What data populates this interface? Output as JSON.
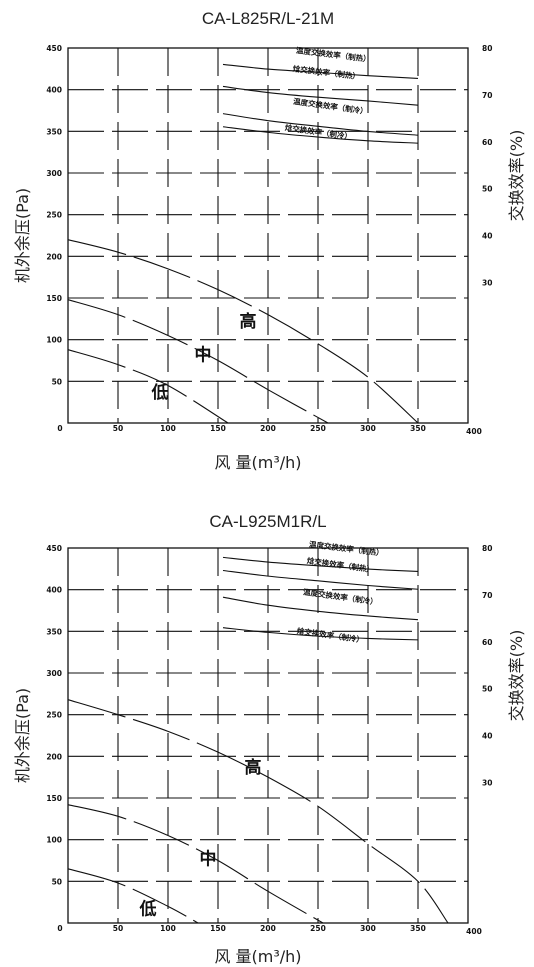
{
  "chart_data": [
    {
      "type": "line",
      "title": "CA-L825R/L-21M",
      "xlabel": "风 量(m³/h)",
      "ylabel": "机外余压(Pa)",
      "y2label": "交换效率(%)",
      "xlim": [
        0,
        400
      ],
      "ylim": [
        0,
        450
      ],
      "y2lim": [
        0,
        80
      ],
      "x_ticks": [
        "0",
        "50",
        "100",
        "150",
        "200",
        "250",
        "300",
        "350",
        "400"
      ],
      "y_ticks": [
        "50",
        "100",
        "150",
        "200",
        "250",
        "300",
        "350",
        "400",
        "450"
      ],
      "y2_ticks": [
        "30",
        "40",
        "50",
        "60",
        "70",
        "80"
      ],
      "grid": true,
      "series": [
        {
          "name": "高",
          "axis": "left",
          "x": [
            0,
            50,
            100,
            150,
            200,
            250,
            300,
            350
          ],
          "y": [
            220,
            205,
            185,
            160,
            130,
            95,
            55,
            0
          ]
        },
        {
          "name": "中",
          "axis": "left",
          "x": [
            0,
            50,
            100,
            150,
            200,
            260
          ],
          "y": [
            148,
            130,
            105,
            75,
            40,
            0
          ]
        },
        {
          "name": "低",
          "axis": "left",
          "x": [
            0,
            50,
            100,
            160
          ],
          "y": [
            88,
            70,
            45,
            0
          ]
        },
        {
          "name": "温度交换效率（制热）",
          "axis": "right",
          "x": [
            155,
            200,
            250,
            300,
            350
          ],
          "y": [
            76.5,
            75.5,
            74.8,
            74.1,
            73.5
          ]
        },
        {
          "name": "焓交换效率（制热）",
          "axis": "right",
          "x": [
            155,
            200,
            250,
            300,
            350
          ],
          "y": [
            71.8,
            70.5,
            69.5,
            68.7,
            67.8
          ]
        },
        {
          "name": "温度交换效率（制冷）",
          "axis": "right",
          "x": [
            155,
            200,
            250,
            300,
            350
          ],
          "y": [
            66.0,
            64.5,
            63.3,
            62.2,
            61.4
          ]
        },
        {
          "name": "焓交换效率（制冷）",
          "axis": "right",
          "x": [
            155,
            200,
            250,
            300,
            350
          ],
          "y": [
            63.2,
            62.0,
            61.0,
            60.2,
            59.7
          ]
        }
      ]
    },
    {
      "type": "line",
      "title": "CA-L925M1R/L",
      "xlabel": "风 量(m³/h)",
      "ylabel": "机外余压(Pa)",
      "y2label": "交换效率(%)",
      "xlim": [
        0,
        400
      ],
      "ylim": [
        0,
        450
      ],
      "y2lim": [
        0,
        80
      ],
      "x_ticks": [
        "0",
        "50",
        "100",
        "150",
        "200",
        "250",
        "300",
        "350",
        "400"
      ],
      "y_ticks": [
        "50",
        "100",
        "150",
        "200",
        "250",
        "300",
        "350",
        "400",
        "450"
      ],
      "y2_ticks": [
        "30",
        "40",
        "50",
        "60",
        "70",
        "80"
      ],
      "grid": true,
      "series": [
        {
          "name": "高",
          "axis": "left",
          "x": [
            0,
            50,
            100,
            150,
            200,
            250,
            300,
            350,
            380
          ],
          "y": [
            268,
            250,
            230,
            205,
            175,
            140,
            95,
            50,
            0
          ]
        },
        {
          "name": "中",
          "axis": "left",
          "x": [
            0,
            50,
            100,
            150,
            200,
            255
          ],
          "y": [
            142,
            128,
            105,
            75,
            38,
            0
          ]
        },
        {
          "name": "低",
          "axis": "left",
          "x": [
            0,
            50,
            100,
            130
          ],
          "y": [
            65,
            48,
            20,
            0
          ]
        },
        {
          "name": "温度交换效率（制热）",
          "axis": "right",
          "x": [
            155,
            200,
            250,
            300,
            350
          ],
          "y": [
            78.0,
            77.0,
            76.2,
            75.5,
            75.0
          ]
        },
        {
          "name": "焓交换效率（制热）",
          "axis": "right",
          "x": [
            155,
            200,
            250,
            300,
            350
          ],
          "y": [
            75.2,
            74.0,
            73.0,
            72.0,
            71.2
          ]
        },
        {
          "name": "温度交换效率（制冷）",
          "axis": "right",
          "x": [
            155,
            200,
            250,
            300,
            350
          ],
          "y": [
            69.5,
            67.8,
            66.5,
            65.5,
            64.7
          ]
        },
        {
          "name": "焓交换效率（制冷）",
          "axis": "right",
          "x": [
            155,
            200,
            250,
            300,
            350
          ],
          "y": [
            63.0,
            62.0,
            61.2,
            60.7,
            60.4
          ]
        }
      ]
    }
  ],
  "annotations": [
    {
      "labels": [
        "温度交换效率（制热）",
        "焓交换效率（制热）",
        "温度交换效率（制冷）",
        "焓交换效率（制冷）"
      ],
      "speeds": [
        "高",
        "中",
        "低"
      ]
    },
    {
      "labels": [
        "温度交换效率（制热）",
        "焓交换效率（制热）",
        "温度交换效率（制冷）",
        "焓交换效率（制冷）"
      ],
      "speeds": [
        "高",
        "中",
        "低"
      ]
    }
  ]
}
